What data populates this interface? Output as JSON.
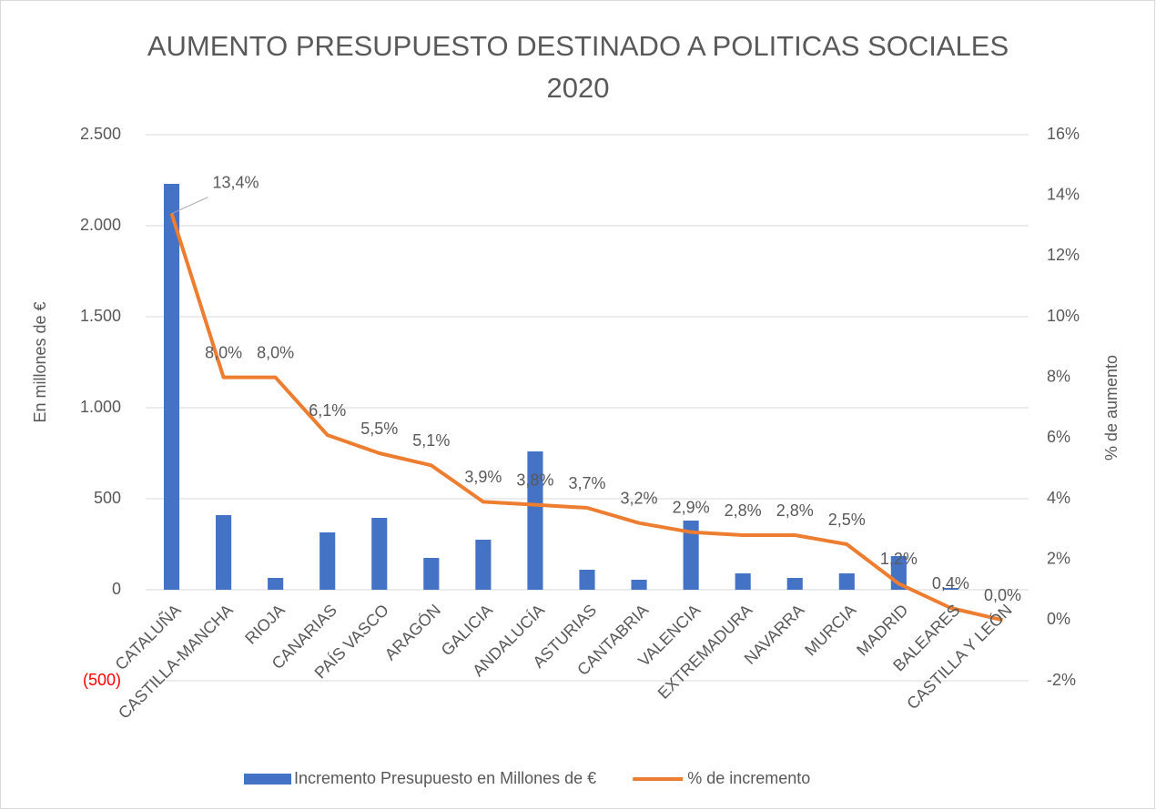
{
  "chart_data": {
    "type": "bar+line",
    "title": "AUMENTO PRESUPUESTO DESTINADO A POLITICAS SOCIALES 2020",
    "ylabel": "En millones de €",
    "y2label": "% de aumento",
    "categories": [
      "CATALUÑA",
      "CASTILLA-MANCHA",
      "RIOJA",
      "CANARIAS",
      "PAÍS VASCO",
      "ARAGÓN",
      "GALICIA",
      "ANDALUCÍA",
      "ASTURIAS",
      "CANTABRIA",
      "VALENCIA",
      "EXTREMADURA",
      "NAVARRA",
      "MURCIA",
      "MADRID",
      "BALEARES",
      "CASTILLA Y LEÓN"
    ],
    "series": [
      {
        "name": "Incremento Presupuesto en Millones de €",
        "type": "bar",
        "color": "#4472c4",
        "values": [
          2230,
          410,
          65,
          315,
          395,
          175,
          275,
          760,
          110,
          55,
          380,
          90,
          65,
          90,
          185,
          10,
          0
        ]
      },
      {
        "name": "% de incremento",
        "type": "line",
        "axis": "y2",
        "color": "#ed7d31",
        "values": [
          13.4,
          8.0,
          8.0,
          6.1,
          5.5,
          5.1,
          3.9,
          3.8,
          3.7,
          3.2,
          2.9,
          2.8,
          2.8,
          2.5,
          1.2,
          0.4,
          0.0
        ],
        "value_labels": [
          "13,4%",
          "8,0%",
          "8,0%",
          "6,1%",
          "5,5%",
          "5,1%",
          "3,9%",
          "3,8%",
          "3,7%",
          "3,2%",
          "2,9%",
          "2,8%",
          "2,8%",
          "2,5%",
          "1,2%",
          "0,4%",
          "0,0%"
        ]
      }
    ],
    "ylim": [
      -500,
      2500
    ],
    "yticks": [
      {
        "value": -500,
        "label": "(500)"
      },
      0,
      500,
      {
        "value": 1000,
        "label": "1.000"
      },
      {
        "value": 1500,
        "label": "1.500"
      },
      {
        "value": 2000,
        "label": "2.000"
      },
      {
        "value": 2500,
        "label": "2.500"
      }
    ],
    "negative_tick_color": "#ff0000",
    "y2lim": [
      -2,
      16
    ],
    "y2ticks": [
      {
        "value": -2,
        "label": "-2%"
      },
      {
        "value": 0,
        "label": "0%"
      },
      {
        "value": 2,
        "label": "2%"
      },
      {
        "value": 4,
        "label": "4%"
      },
      {
        "value": 6,
        "label": "6%"
      },
      {
        "value": 8,
        "label": "8%"
      },
      {
        "value": 10,
        "label": "10%"
      },
      {
        "value": 12,
        "label": "12%"
      },
      {
        "value": 14,
        "label": "14%"
      },
      {
        "value": 16,
        "label": "16%"
      }
    ],
    "grid": true,
    "legend": "bottom"
  }
}
